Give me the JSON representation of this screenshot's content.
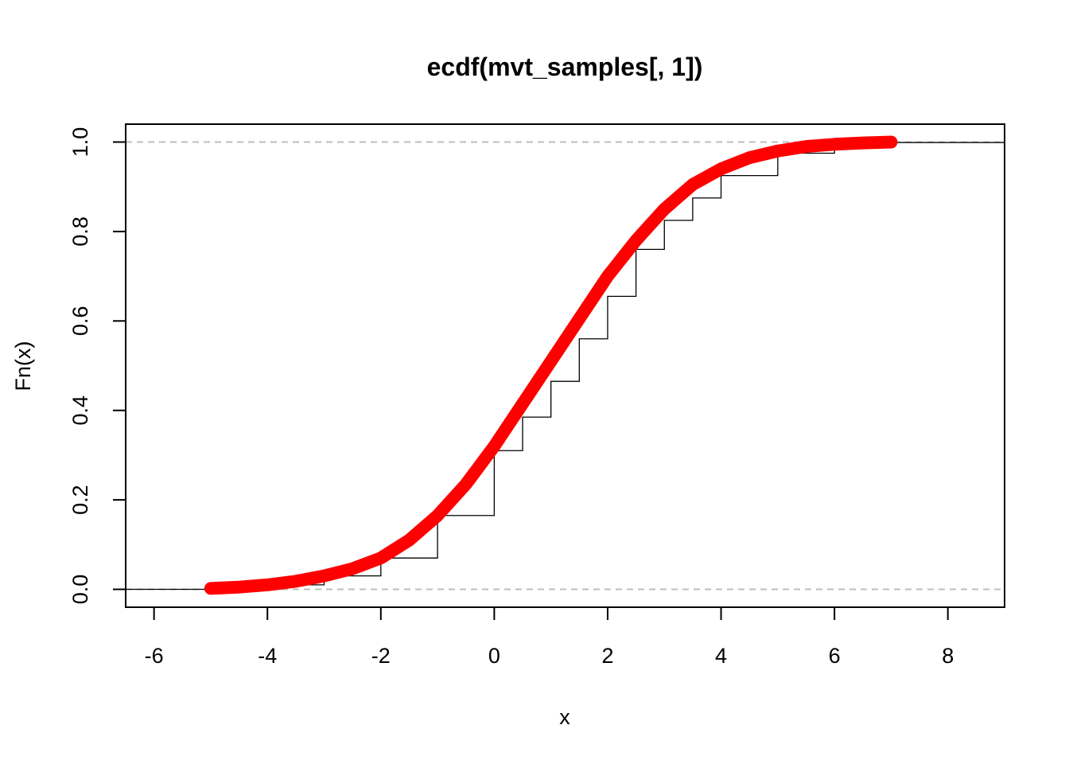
{
  "chart_data": {
    "type": "line",
    "title": "ecdf(mvt_samples[, 1])",
    "xlabel": "x",
    "ylabel": "Fn(x)",
    "xlim": [
      -6.5,
      9.0
    ],
    "ylim": [
      -0.04,
      1.04
    ],
    "x_ticks": [
      -6,
      -4,
      -2,
      0,
      2,
      4,
      6,
      8
    ],
    "x_tick_labels": [
      "-6",
      "-4",
      "-2",
      "0",
      "2",
      "4",
      "6",
      "8"
    ],
    "y_ticks": [
      0.0,
      0.2,
      0.4,
      0.6,
      0.8,
      1.0
    ],
    "y_tick_labels": [
      "0.0",
      "0.2",
      "0.4",
      "0.6",
      "0.8",
      "1.0"
    ],
    "reference_lines": [
      0.0,
      1.0
    ],
    "grid": false,
    "series": [
      {
        "kind": "ecdf-step",
        "color": "#000000",
        "x": [
          -6.5,
          -5.0,
          -4.0,
          -3.0,
          -2.0,
          -1.0,
          0.0,
          0.5,
          1.0,
          1.5,
          2.0,
          2.5,
          3.0,
          3.5,
          4.0,
          5.0,
          6.0,
          7.0,
          9.0
        ],
        "y": [
          0.0,
          0.002,
          0.01,
          0.03,
          0.07,
          0.165,
          0.31,
          0.385,
          0.465,
          0.56,
          0.655,
          0.76,
          0.825,
          0.875,
          0.925,
          0.975,
          0.993,
          0.999,
          1.0
        ]
      },
      {
        "kind": "theoretical-cdf",
        "color": "#ff0000",
        "x": [
          -5.0,
          -4.5,
          -4.0,
          -3.5,
          -3.0,
          -2.5,
          -2.0,
          -1.5,
          -1.0,
          -0.5,
          0.0,
          0.5,
          1.0,
          1.5,
          2.0,
          2.5,
          3.0,
          3.5,
          4.0,
          4.5,
          5.0,
          5.5,
          6.0,
          6.5,
          7.0
        ],
        "y": [
          0.002,
          0.005,
          0.01,
          0.018,
          0.03,
          0.046,
          0.07,
          0.11,
          0.165,
          0.235,
          0.32,
          0.415,
          0.51,
          0.605,
          0.7,
          0.78,
          0.85,
          0.905,
          0.94,
          0.965,
          0.98,
          0.99,
          0.995,
          0.998,
          1.0
        ]
      }
    ]
  }
}
